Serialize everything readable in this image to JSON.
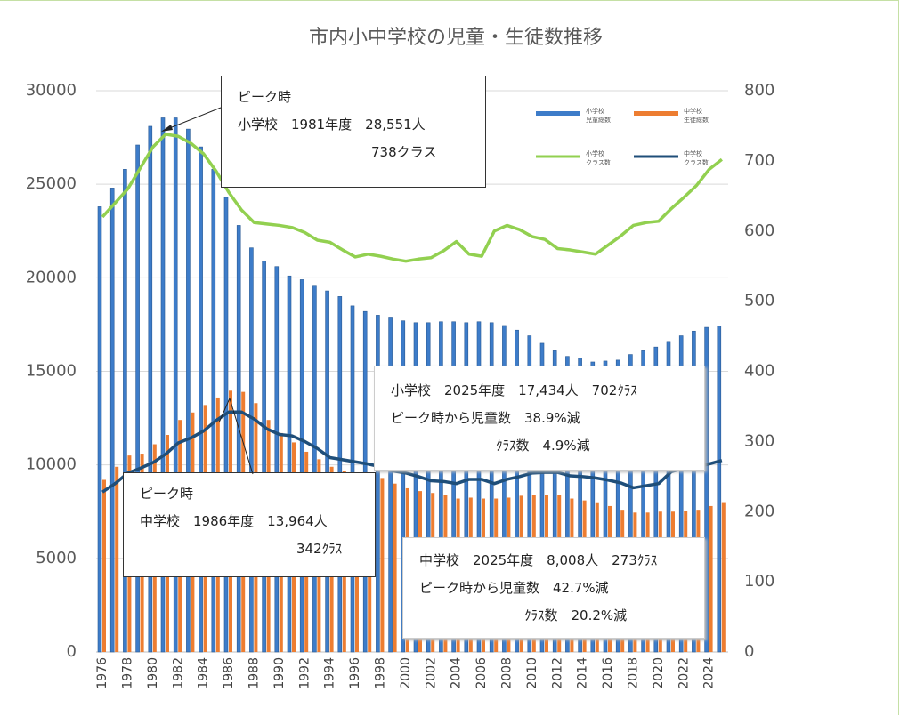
{
  "chart_data": {
    "type": "bar",
    "title": "市内小中学校の児童・生徒数推移",
    "categories": [
      "1976",
      null,
      "1978",
      null,
      "1980",
      null,
      "1982",
      null,
      "1984",
      null,
      "1986",
      null,
      "1988",
      null,
      "1990",
      null,
      "1992",
      null,
      "1994",
      null,
      "1996",
      null,
      "1998",
      null,
      "2000",
      null,
      "2002",
      null,
      "2004",
      null,
      "2006",
      null,
      "2008",
      null,
      "2010",
      null,
      "2012",
      null,
      "2014",
      null,
      "2016",
      null,
      "2018",
      null,
      "2020",
      null,
      "2022",
      null,
      "2024",
      null
    ],
    "series": [
      {
        "name": "小学校\n児童総数",
        "type": "bar",
        "color": "#3d7cc9",
        "values": [
          23800,
          24800,
          25800,
          27100,
          28100,
          28551,
          28550,
          27950,
          27000,
          25800,
          24300,
          22800,
          21600,
          20900,
          20600,
          20100,
          19900,
          19600,
          19300,
          19000,
          18500,
          18200,
          18000,
          17900,
          17700,
          17600,
          17600,
          17650,
          17650,
          17600,
          17650,
          17600,
          17450,
          17200,
          16900,
          16500,
          16100,
          15800,
          15700,
          15500,
          15550,
          15600,
          15900,
          16100,
          16300,
          16600,
          16900,
          17150,
          17350,
          17434
        ]
      },
      {
        "name": "中学校\n生徒総数",
        "type": "bar",
        "color": "#ed7d31",
        "values": [
          9200,
          9900,
          10500,
          10600,
          11100,
          11600,
          12400,
          12800,
          13200,
          13600,
          13964,
          13900,
          13300,
          12400,
          11700,
          11200,
          10700,
          10300,
          9900,
          9700,
          9500,
          9400,
          9300,
          9000,
          8750,
          8600,
          8500,
          8400,
          8200,
          8250,
          8200,
          8200,
          8250,
          8350,
          8400,
          8400,
          8400,
          8200,
          8100,
          8000,
          7800,
          7600,
          7450,
          7450,
          7500,
          7500,
          7550,
          7600,
          7800,
          8008
        ]
      },
      {
        "name": "小学校\nクラス数",
        "type": "line",
        "axis": "y2",
        "color": "#92d050",
        "values": [
          620,
          640,
          660,
          690,
          720,
          738,
          735,
          725,
          710,
          685,
          655,
          630,
          612,
          610,
          608,
          605,
          598,
          587,
          584,
          573,
          563,
          567,
          564,
          560,
          557,
          560,
          562,
          572,
          585,
          567,
          564,
          600,
          608,
          602,
          592,
          588,
          575,
          573,
          570,
          567,
          580,
          593,
          608,
          612,
          614,
          632,
          648,
          665,
          688,
          702
        ]
      },
      {
        "name": "中学校\nクラス数",
        "type": "line",
        "axis": "y2",
        "color": "#1f4e79",
        "values": [
          228,
          240,
          255,
          262,
          270,
          282,
          298,
          305,
          315,
          330,
          342,
          342,
          332,
          318,
          310,
          308,
          300,
          290,
          277,
          274,
          271,
          268,
          264,
          258,
          255,
          250,
          244,
          243,
          240,
          246,
          246,
          240,
          246,
          250,
          255,
          256,
          256,
          251,
          250,
          248,
          245,
          241,
          234,
          237,
          240,
          257,
          262,
          264,
          268,
          273
        ]
      }
    ],
    "ylim": [
      0,
      30000
    ],
    "yticks": [
      0,
      5000,
      10000,
      15000,
      20000,
      25000,
      30000
    ],
    "y2lim": [
      0,
      800
    ],
    "y2ticks": [
      0,
      100,
      200,
      300,
      400,
      500,
      600,
      700,
      800
    ],
    "grid": true,
    "annotations": [
      [
        "ピーク時",
        "小学校　1981年度　28,551人",
        "738クラス"
      ],
      [
        "小学校　2025年度　17,434人　702ｸﾗｽ",
        "ピーク時から児童数　38.9%減",
        "ｸﾗｽ数　4.9%減"
      ],
      [
        "ピーク時",
        "中学校　1986年度　13,964人",
        "342ｸﾗｽ"
      ],
      [
        "中学校　2025年度　8,008人　273ｸﾗｽ",
        "ピーク時から児童数　42.7%減",
        "ｸﾗｽ数　20.2%減"
      ]
    ]
  }
}
